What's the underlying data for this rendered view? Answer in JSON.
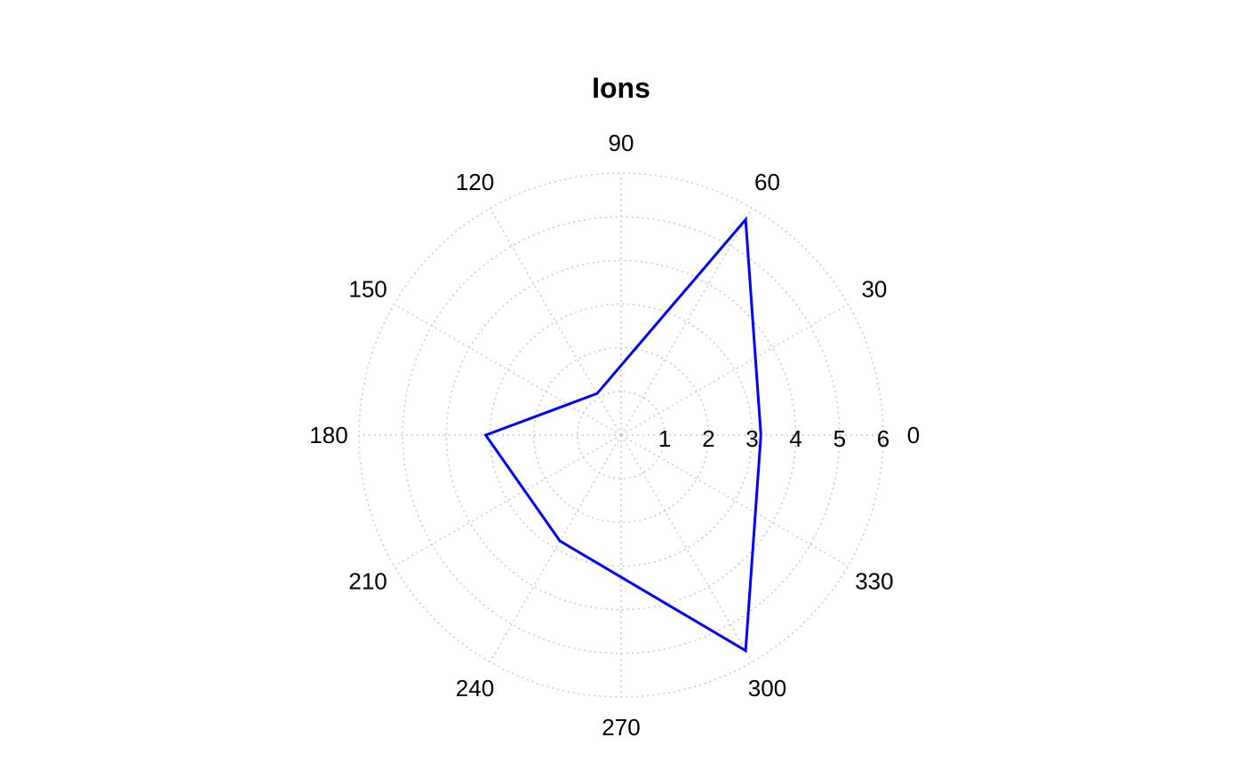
{
  "chart_data": {
    "type": "polar-line",
    "title": "Ions",
    "angle_unit": "degrees",
    "angle_ticks": [
      0,
      30,
      60,
      90,
      120,
      150,
      180,
      210,
      240,
      270,
      300,
      330
    ],
    "angle_tick_labels": [
      "0",
      "30",
      "60",
      "90",
      "120",
      "150",
      "180",
      "210",
      "240",
      "270",
      "300",
      "330"
    ],
    "radial_ticks": [
      1,
      2,
      3,
      4,
      5,
      6
    ],
    "radial_tick_labels": [
      "1",
      "2",
      "3",
      "4",
      "5",
      "6"
    ],
    "rlim": [
      0,
      6
    ],
    "grid": true,
    "legend": false,
    "series": [
      {
        "color": "#0000ff",
        "theta": [
          0,
          60,
          120,
          180,
          240,
          300,
          0
        ],
        "r": [
          3.2,
          5.7,
          1.1,
          3.1,
          2.8,
          5.7,
          3.2
        ]
      }
    ]
  }
}
